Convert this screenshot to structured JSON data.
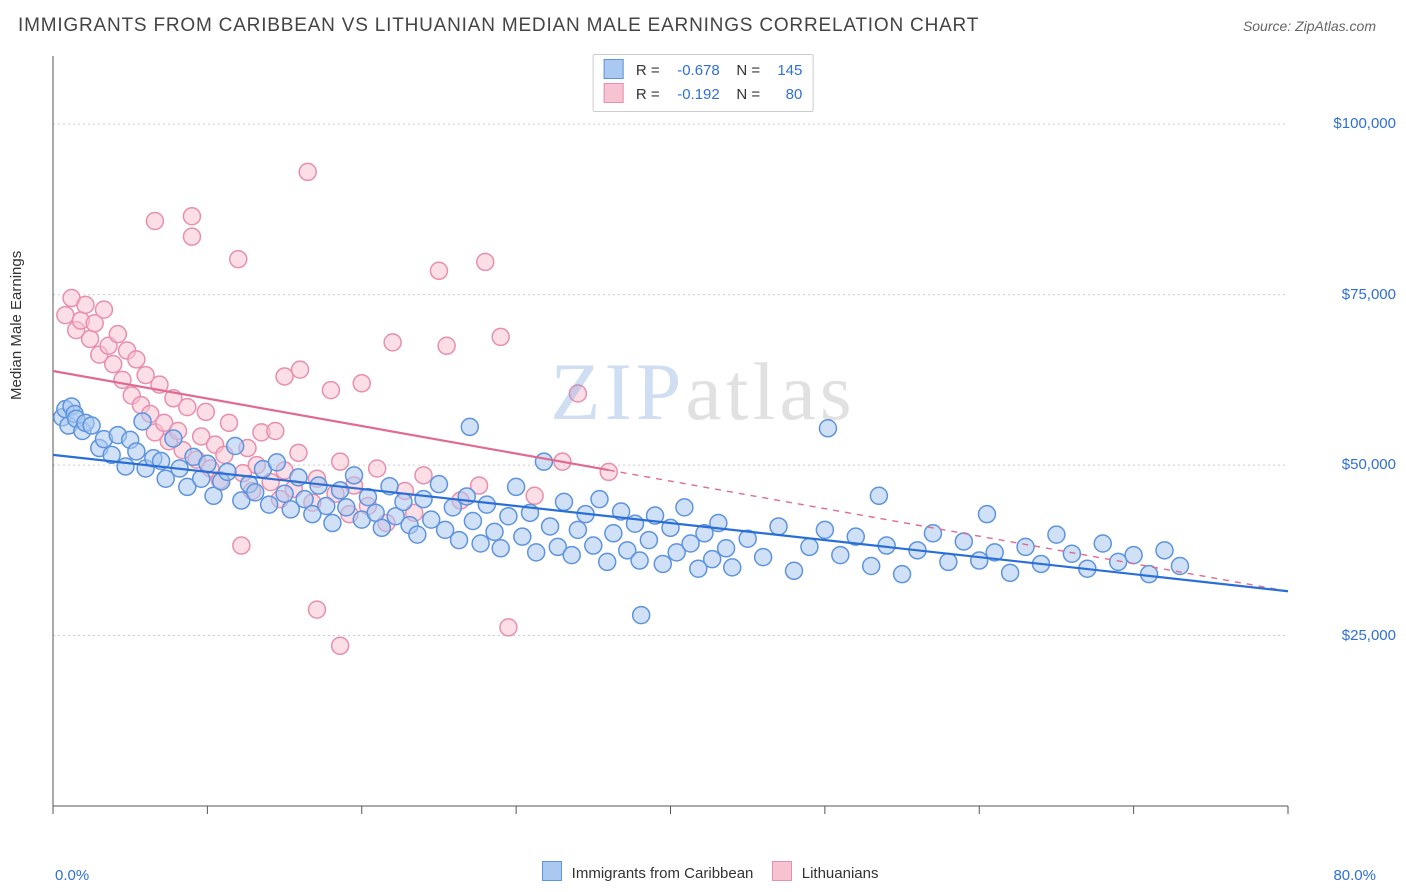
{
  "title": "IMMIGRANTS FROM CARIBBEAN VS LITHUANIAN MEDIAN MALE EARNINGS CORRELATION CHART",
  "source": "Source: ZipAtlas.com",
  "watermark": {
    "zip": "ZIP",
    "atlas": "atlas"
  },
  "chart": {
    "type": "scatter",
    "background_color": "#ffffff",
    "grid_color": "#cccccc",
    "axis_color": "#555555",
    "xlim": [
      0,
      80
    ],
    "ylim": [
      0,
      110000
    ],
    "x_ticks": [
      0,
      10,
      20,
      30,
      40,
      50,
      60,
      70,
      80
    ],
    "y_gridlines": [
      25000,
      50000,
      75000,
      100000
    ],
    "y_tick_labels": [
      "$25,000",
      "$50,000",
      "$75,000",
      "$100,000"
    ],
    "x_end_labels": [
      "0.0%",
      "80.0%"
    ],
    "ylabel": "Median Male Earnings",
    "marker_style": "circle",
    "marker_radius": 8.5,
    "marker_stroke_width": 1.5,
    "trend_line_width": 2.2,
    "legend_top": {
      "rows": [
        {
          "swatch_fill": "#aac8f0",
          "swatch_stroke": "#5e94dd",
          "r_label": "R =",
          "r_value": "-0.678",
          "n_label": "N =",
          "n_value": "145"
        },
        {
          "swatch_fill": "#f7c2d2",
          "swatch_stroke": "#e98fae",
          "r_label": "R =",
          "r_value": "-0.192",
          "n_label": "N =",
          "n_value": "80"
        }
      ]
    },
    "legend_bottom": [
      {
        "swatch_fill": "#aac8f0",
        "swatch_stroke": "#5e94dd",
        "label": "Immigrants from Caribbean"
      },
      {
        "swatch_fill": "#f7c2d2",
        "swatch_stroke": "#e98fae",
        "label": "Lithuanians"
      }
    ],
    "series": [
      {
        "name": "caribbean",
        "fill": "#aac8f0",
        "fill_opacity": 0.55,
        "stroke": "#5e94dd",
        "trend": {
          "x1": 0,
          "y1": 51500,
          "x2": 80,
          "y2": 31500,
          "color": "#2a6fd6",
          "dashed_after_x": null
        },
        "points": [
          [
            0.6,
            57000
          ],
          [
            0.8,
            58200
          ],
          [
            1.0,
            55800
          ],
          [
            1.2,
            58600
          ],
          [
            1.4,
            57500
          ],
          [
            1.5,
            56800
          ],
          [
            1.9,
            55000
          ],
          [
            2.1,
            56200
          ],
          [
            2.5,
            55800
          ],
          [
            3.0,
            52500
          ],
          [
            3.3,
            53800
          ],
          [
            3.8,
            51500
          ],
          [
            4.2,
            54400
          ],
          [
            4.7,
            49800
          ],
          [
            5.0,
            53700
          ],
          [
            5.4,
            52000
          ],
          [
            5.8,
            56400
          ],
          [
            6.0,
            49500
          ],
          [
            6.5,
            51000
          ],
          [
            7.0,
            50600
          ],
          [
            7.3,
            48000
          ],
          [
            7.8,
            53900
          ],
          [
            8.2,
            49500
          ],
          [
            8.7,
            46800
          ],
          [
            9.1,
            51200
          ],
          [
            9.6,
            48000
          ],
          [
            10.0,
            50200
          ],
          [
            10.4,
            45500
          ],
          [
            10.9,
            47600
          ],
          [
            11.3,
            49000
          ],
          [
            11.8,
            52800
          ],
          [
            12.2,
            44800
          ],
          [
            12.7,
            47200
          ],
          [
            13.1,
            46000
          ],
          [
            13.6,
            49400
          ],
          [
            14.0,
            44200
          ],
          [
            14.5,
            50400
          ],
          [
            15.0,
            45800
          ],
          [
            15.4,
            43500
          ],
          [
            15.9,
            48200
          ],
          [
            16.3,
            45000
          ],
          [
            16.8,
            42800
          ],
          [
            17.2,
            47000
          ],
          [
            17.7,
            44000
          ],
          [
            18.1,
            41500
          ],
          [
            18.6,
            46300
          ],
          [
            19.0,
            43800
          ],
          [
            19.5,
            48500
          ],
          [
            20.0,
            42000
          ],
          [
            20.4,
            45300
          ],
          [
            20.9,
            43000
          ],
          [
            21.3,
            40800
          ],
          [
            21.8,
            46900
          ],
          [
            22.2,
            42500
          ],
          [
            22.7,
            44600
          ],
          [
            23.1,
            41200
          ],
          [
            23.6,
            39800
          ],
          [
            24.0,
            45000
          ],
          [
            24.5,
            42000
          ],
          [
            25.0,
            47200
          ],
          [
            25.4,
            40500
          ],
          [
            25.9,
            43800
          ],
          [
            26.3,
            39000
          ],
          [
            26.8,
            45400
          ],
          [
            27.0,
            55600
          ],
          [
            27.2,
            41800
          ],
          [
            27.7,
            38500
          ],
          [
            28.1,
            44200
          ],
          [
            28.6,
            40200
          ],
          [
            29.0,
            37800
          ],
          [
            29.5,
            42500
          ],
          [
            30.0,
            46800
          ],
          [
            30.4,
            39500
          ],
          [
            30.9,
            43000
          ],
          [
            31.3,
            37200
          ],
          [
            31.8,
            50500
          ],
          [
            32.2,
            41000
          ],
          [
            32.7,
            38000
          ],
          [
            33.1,
            44600
          ],
          [
            33.6,
            36800
          ],
          [
            34.0,
            40500
          ],
          [
            34.5,
            42800
          ],
          [
            35.0,
            38200
          ],
          [
            35.4,
            45000
          ],
          [
            35.9,
            35800
          ],
          [
            36.3,
            40000
          ],
          [
            36.8,
            43200
          ],
          [
            37.2,
            37500
          ],
          [
            37.7,
            41400
          ],
          [
            38.0,
            36000
          ],
          [
            38.1,
            28000
          ],
          [
            38.6,
            39000
          ],
          [
            39.0,
            42600
          ],
          [
            39.5,
            35500
          ],
          [
            40.0,
            40800
          ],
          [
            40.4,
            37200
          ],
          [
            40.9,
            43800
          ],
          [
            41.3,
            38500
          ],
          [
            41.8,
            34800
          ],
          [
            42.2,
            40000
          ],
          [
            42.7,
            36200
          ],
          [
            43.1,
            41500
          ],
          [
            43.6,
            37800
          ],
          [
            44.0,
            35000
          ],
          [
            45.0,
            39200
          ],
          [
            46.0,
            36500
          ],
          [
            47.0,
            41000
          ],
          [
            48.0,
            34500
          ],
          [
            49.0,
            38000
          ],
          [
            50.0,
            40500
          ],
          [
            50.2,
            55400
          ],
          [
            51.0,
            36800
          ],
          [
            52.0,
            39500
          ],
          [
            53.0,
            35200
          ],
          [
            53.5,
            45500
          ],
          [
            54.0,
            38200
          ],
          [
            55.0,
            34000
          ],
          [
            56.0,
            37500
          ],
          [
            57.0,
            40000
          ],
          [
            58.0,
            35800
          ],
          [
            59.0,
            38800
          ],
          [
            60.0,
            36000
          ],
          [
            60.5,
            42800
          ],
          [
            61.0,
            37200
          ],
          [
            62.0,
            34200
          ],
          [
            63.0,
            38000
          ],
          [
            64.0,
            35500
          ],
          [
            65.0,
            39800
          ],
          [
            66.0,
            37000
          ],
          [
            67.0,
            34800
          ],
          [
            68.0,
            38500
          ],
          [
            69.0,
            35800
          ],
          [
            70.0,
            36800
          ],
          [
            71.0,
            34000
          ],
          [
            72.0,
            37500
          ],
          [
            73.0,
            35200
          ]
        ]
      },
      {
        "name": "lithuanians",
        "fill": "#f7c2d2",
        "fill_opacity": 0.55,
        "stroke": "#e98fae",
        "trend": {
          "x1": 0,
          "y1": 63800,
          "x2": 80,
          "y2": 31500,
          "color": "#e06a91",
          "dashed_after_x": 36
        },
        "points": [
          [
            0.8,
            72000
          ],
          [
            1.2,
            74500
          ],
          [
            1.5,
            69800
          ],
          [
            1.8,
            71200
          ],
          [
            2.1,
            73500
          ],
          [
            2.4,
            68500
          ],
          [
            2.7,
            70800
          ],
          [
            3.0,
            66200
          ],
          [
            3.3,
            72800
          ],
          [
            3.6,
            67500
          ],
          [
            3.9,
            64800
          ],
          [
            4.2,
            69200
          ],
          [
            4.5,
            62500
          ],
          [
            4.8,
            66800
          ],
          [
            5.1,
            60200
          ],
          [
            5.4,
            65500
          ],
          [
            5.7,
            58800
          ],
          [
            6.0,
            63200
          ],
          [
            6.3,
            57500
          ],
          [
            6.6,
            54800
          ],
          [
            6.6,
            85800
          ],
          [
            6.9,
            61800
          ],
          [
            7.2,
            56200
          ],
          [
            7.5,
            53500
          ],
          [
            7.8,
            59800
          ],
          [
            8.1,
            55000
          ],
          [
            8.4,
            52200
          ],
          [
            8.7,
            58500
          ],
          [
            9.0,
            83500
          ],
          [
            9.0,
            86500
          ],
          [
            9.3,
            50800
          ],
          [
            9.6,
            54200
          ],
          [
            9.9,
            57800
          ],
          [
            10.2,
            49500
          ],
          [
            10.5,
            53000
          ],
          [
            10.8,
            47800
          ],
          [
            11.1,
            51500
          ],
          [
            11.4,
            56200
          ],
          [
            12.0,
            80200
          ],
          [
            12.3,
            48800
          ],
          [
            12.6,
            52500
          ],
          [
            12.2,
            38200
          ],
          [
            12.9,
            46200
          ],
          [
            13.2,
            50000
          ],
          [
            13.5,
            54800
          ],
          [
            14.1,
            47500
          ],
          [
            14.4,
            55000
          ],
          [
            14.7,
            45000
          ],
          [
            15.0,
            49200
          ],
          [
            15.0,
            63000
          ],
          [
            15.6,
            46500
          ],
          [
            15.9,
            51800
          ],
          [
            16.0,
            64000
          ],
          [
            16.5,
            93000
          ],
          [
            16.8,
            44500
          ],
          [
            17.1,
            28800
          ],
          [
            17.1,
            48000
          ],
          [
            18.0,
            61000
          ],
          [
            18.3,
            45800
          ],
          [
            18.6,
            50500
          ],
          [
            18.6,
            23500
          ],
          [
            19.2,
            42800
          ],
          [
            19.5,
            47000
          ],
          [
            20.0,
            62000
          ],
          [
            20.4,
            44000
          ],
          [
            21.0,
            49500
          ],
          [
            21.6,
            41500
          ],
          [
            22.0,
            68000
          ],
          [
            22.8,
            46200
          ],
          [
            23.4,
            43000
          ],
          [
            24.0,
            48500
          ],
          [
            25.0,
            78500
          ],
          [
            25.5,
            67500
          ],
          [
            26.4,
            44800
          ],
          [
            27.6,
            47000
          ],
          [
            28.0,
            79800
          ],
          [
            29.0,
            68800
          ],
          [
            29.5,
            26200
          ],
          [
            31.2,
            45500
          ],
          [
            33.0,
            50500
          ],
          [
            34.0,
            60500
          ],
          [
            36.0,
            49000
          ]
        ]
      }
    ]
  }
}
